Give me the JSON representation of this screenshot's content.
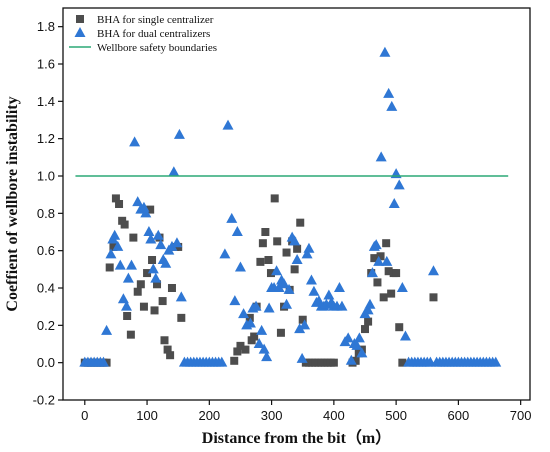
{
  "chart_data": {
    "type": "scatter",
    "xlabel": "Distance from the bit（m）",
    "ylabel": "Coeffient of wellbore instability",
    "xlim": [
      -35,
      715
    ],
    "ylim": [
      -0.2,
      1.9
    ],
    "x_ticks": [
      "0",
      "100",
      "200",
      "300",
      "400",
      "500",
      "600",
      "700"
    ],
    "y_ticks": [
      "-0.2",
      "0.0",
      "0.2",
      "0.4",
      "0.6",
      "0.8",
      "1.0",
      "1.2",
      "1.4",
      "1.6",
      "1.8"
    ],
    "legend_position": "top-left",
    "grid": false,
    "series": [
      {
        "name": "BHA for single centralizer",
        "marker": "square",
        "color": "#4d4d4d",
        "points": [
          [
            0,
            0
          ],
          [
            5,
            0
          ],
          [
            10,
            0
          ],
          [
            15,
            0
          ],
          [
            20,
            0
          ],
          [
            25,
            0
          ],
          [
            30,
            0
          ],
          [
            35,
            0
          ],
          [
            40,
            0.51
          ],
          [
            46,
            0.62
          ],
          [
            50,
            0.88
          ],
          [
            55,
            0.85
          ],
          [
            60,
            0.76
          ],
          [
            64,
            0.74
          ],
          [
            68,
            0.25
          ],
          [
            74,
            0.15
          ],
          [
            78,
            0.67
          ],
          [
            85,
            0.38
          ],
          [
            90,
            0.42
          ],
          [
            95,
            0.3
          ],
          [
            100,
            0.48
          ],
          [
            105,
            0.82
          ],
          [
            108,
            0.55
          ],
          [
            112,
            0.28
          ],
          [
            116,
            0.42
          ],
          [
            120,
            0.67
          ],
          [
            125,
            0.33
          ],
          [
            128,
            0.12
          ],
          [
            133,
            0.07
          ],
          [
            137,
            0.04
          ],
          [
            140,
            0.4
          ],
          [
            145,
            0.62
          ],
          [
            150,
            0.62
          ],
          [
            155,
            0.24
          ],
          [
            240,
            0.01
          ],
          [
            245,
            0.06
          ],
          [
            250,
            0.09
          ],
          [
            258,
            0.07
          ],
          [
            265,
            0.24
          ],
          [
            268,
            0.12
          ],
          [
            272,
            0.14
          ],
          [
            276,
            0.3
          ],
          [
            282,
            0.54
          ],
          [
            286,
            0.64
          ],
          [
            290,
            0.7
          ],
          [
            295,
            0.55
          ],
          [
            299,
            0.48
          ],
          [
            305,
            0.88
          ],
          [
            309,
            0.65
          ],
          [
            315,
            0.16
          ],
          [
            320,
            0.3
          ],
          [
            324,
            0.59
          ],
          [
            329,
            0.39
          ],
          [
            333,
            0.65
          ],
          [
            337,
            0.5
          ],
          [
            341,
            0.61
          ],
          [
            346,
            0.75
          ],
          [
            350,
            0.23
          ],
          [
            355,
            0.0
          ],
          [
            360,
            0.0
          ],
          [
            365,
            0.0
          ],
          [
            370,
            0.0
          ],
          [
            375,
            0.0
          ],
          [
            380,
            0.0
          ],
          [
            385,
            0.0
          ],
          [
            390,
            0.0
          ],
          [
            395,
            0.0
          ],
          [
            400,
            0.0
          ],
          [
            430,
            0.0
          ],
          [
            435,
            0.01
          ],
          [
            440,
            0.05
          ],
          [
            445,
            0.07
          ],
          [
            450,
            0.18
          ],
          [
            455,
            0.22
          ],
          [
            460,
            0.48
          ],
          [
            465,
            0.56
          ],
          [
            470,
            0.43
          ],
          [
            475,
            0.57
          ],
          [
            480,
            0.35
          ],
          [
            484,
            0.64
          ],
          [
            488,
            0.49
          ],
          [
            492,
            0.37
          ],
          [
            496,
            0.48
          ],
          [
            500,
            0.48
          ],
          [
            505,
            0.19
          ],
          [
            510,
            0.0
          ],
          [
            560,
            0.35
          ]
        ]
      },
      {
        "name": "BHA for dual centralizers",
        "marker": "triangle",
        "color": "#2f77d4",
        "points": [
          [
            0,
            0
          ],
          [
            5,
            0
          ],
          [
            10,
            0
          ],
          [
            15,
            0
          ],
          [
            20,
            0
          ],
          [
            25,
            0
          ],
          [
            30,
            0
          ],
          [
            35,
            0.17
          ],
          [
            42,
            0.58
          ],
          [
            45,
            0.66
          ],
          [
            48,
            0.68
          ],
          [
            53,
            0.62
          ],
          [
            57,
            0.52
          ],
          [
            62,
            0.34
          ],
          [
            67,
            0.3
          ],
          [
            70,
            0.45
          ],
          [
            75,
            0.52
          ],
          [
            80,
            1.18
          ],
          [
            85,
            0.86
          ],
          [
            90,
            0.82
          ],
          [
            95,
            0.83
          ],
          [
            98,
            0.8
          ],
          [
            103,
            0.7
          ],
          [
            106,
            0.66
          ],
          [
            110,
            0.5
          ],
          [
            114,
            0.45
          ],
          [
            118,
            0.68
          ],
          [
            122,
            0.63
          ],
          [
            126,
            0.55
          ],
          [
            130,
            0.53
          ],
          [
            135,
            0.6
          ],
          [
            140,
            0.62
          ],
          [
            143,
            1.02
          ],
          [
            148,
            0.64
          ],
          [
            152,
            1.22
          ],
          [
            155,
            0.35
          ],
          [
            160,
            0
          ],
          [
            165,
            0
          ],
          [
            170,
            0
          ],
          [
            175,
            0
          ],
          [
            180,
            0
          ],
          [
            185,
            0
          ],
          [
            190,
            0
          ],
          [
            195,
            0
          ],
          [
            200,
            0
          ],
          [
            205,
            0
          ],
          [
            210,
            0
          ],
          [
            215,
            0
          ],
          [
            220,
            0
          ],
          [
            225,
            0.58
          ],
          [
            230,
            1.27
          ],
          [
            236,
            0.77
          ],
          [
            241,
            0.33
          ],
          [
            245,
            0.7
          ],
          [
            250,
            0.51
          ],
          [
            255,
            0.26
          ],
          [
            260,
            0.2
          ],
          [
            266,
            0.21
          ],
          [
            270,
            0.29
          ],
          [
            275,
            0.3
          ],
          [
            280,
            0.1
          ],
          [
            284,
            0.17
          ],
          [
            288,
            0.07
          ],
          [
            292,
            0.03
          ],
          [
            296,
            0.29
          ],
          [
            300,
            0.4
          ],
          [
            304,
            0.4
          ],
          [
            308,
            0.49
          ],
          [
            312,
            0.4
          ],
          [
            316,
            0.44
          ],
          [
            320,
            0.42
          ],
          [
            324,
            0.31
          ],
          [
            328,
            0.39
          ],
          [
            333,
            0.67
          ],
          [
            337,
            0.65
          ],
          [
            341,
            0.55
          ],
          [
            345,
            0.18
          ],
          [
            349,
            0.02
          ],
          [
            353,
            0.2
          ],
          [
            357,
            0.58
          ],
          [
            360,
            0.61
          ],
          [
            364,
            0.44
          ],
          [
            368,
            0.38
          ],
          [
            372,
            0.32
          ],
          [
            376,
            0.33
          ],
          [
            380,
            0.3
          ],
          [
            384,
            0.3
          ],
          [
            388,
            0.31
          ],
          [
            392,
            0.36
          ],
          [
            396,
            0.32
          ],
          [
            400,
            0.3
          ],
          [
            405,
            0.3
          ],
          [
            409,
            0.4
          ],
          [
            413,
            0.3
          ],
          [
            418,
            0.11
          ],
          [
            423,
            0.13
          ],
          [
            428,
            0.01
          ],
          [
            433,
            0.1
          ],
          [
            437,
            0.09
          ],
          [
            441,
            0.13
          ],
          [
            445,
            0.05
          ],
          [
            450,
            0.26
          ],
          [
            455,
            0.28
          ],
          [
            458,
            0.31
          ],
          [
            462,
            0.48
          ],
          [
            465,
            0.62
          ],
          [
            468,
            0.63
          ],
          [
            472,
            0.54
          ],
          [
            476,
            1.1
          ],
          [
            482,
            1.66
          ],
          [
            485,
            0.54
          ],
          [
            488,
            1.44
          ],
          [
            493,
            1.37
          ],
          [
            497,
            0.85
          ],
          [
            500,
            1.01
          ],
          [
            505,
            0.95
          ],
          [
            510,
            0.4
          ],
          [
            515,
            0.14
          ],
          [
            520,
            0
          ],
          [
            525,
            0
          ],
          [
            530,
            0
          ],
          [
            535,
            0
          ],
          [
            540,
            0
          ],
          [
            545,
            0
          ],
          [
            550,
            0
          ],
          [
            555,
            0
          ],
          [
            560,
            0.49
          ],
          [
            565,
            0
          ],
          [
            570,
            0
          ],
          [
            575,
            0
          ],
          [
            580,
            0
          ],
          [
            585,
            0
          ],
          [
            590,
            0
          ],
          [
            595,
            0
          ],
          [
            600,
            0
          ],
          [
            605,
            0
          ],
          [
            610,
            0
          ],
          [
            615,
            0
          ],
          [
            620,
            0
          ],
          [
            625,
            0
          ],
          [
            630,
            0
          ],
          [
            635,
            0
          ],
          [
            640,
            0
          ],
          [
            645,
            0
          ],
          [
            650,
            0
          ],
          [
            655,
            0
          ],
          [
            660,
            0
          ]
        ]
      },
      {
        "name": "Wellbore safety boundaries",
        "marker": "line",
        "color": "#2ca877",
        "points": [
          [
            -15,
            1.0
          ],
          [
            680,
            1.0
          ]
        ]
      }
    ]
  }
}
